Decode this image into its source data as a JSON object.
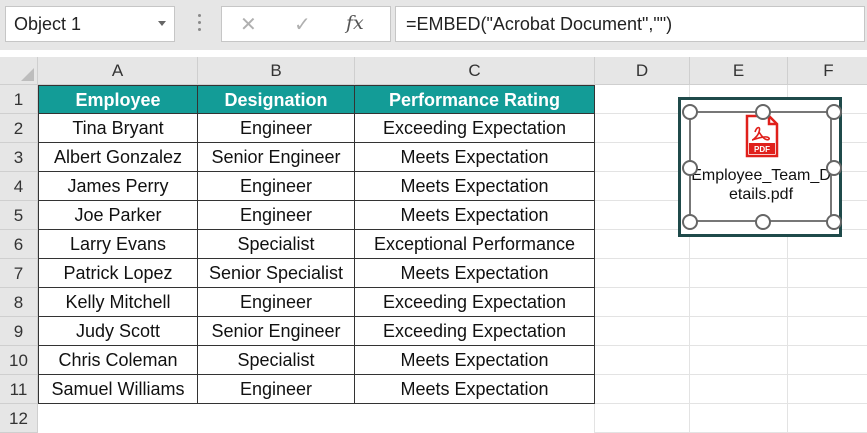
{
  "name_box": {
    "value": "Object 1"
  },
  "formula_bar": {
    "cancel_icon": "cancel-icon",
    "enter_icon": "check-icon",
    "fx_label": "fx",
    "formula": "=EMBED(\"Acrobat Document\",\"\")"
  },
  "columns": [
    "A",
    "B",
    "C",
    "D",
    "E",
    "F"
  ],
  "rows": [
    "1",
    "2",
    "3",
    "4",
    "5",
    "6",
    "7",
    "8",
    "9",
    "10",
    "11",
    "12"
  ],
  "table": {
    "header_color": "#139c97",
    "headers": [
      "Employee",
      "Designation",
      "Performance Rating"
    ],
    "rows": [
      [
        "Tina Bryant",
        "Engineer",
        "Exceeding Expectation"
      ],
      [
        "Albert Gonzalez",
        "Senior Engineer",
        "Meets Expectation"
      ],
      [
        "James Perry",
        "Engineer",
        "Meets Expectation"
      ],
      [
        "Joe Parker",
        "Engineer",
        "Meets Expectation"
      ],
      [
        "Larry Evans",
        "Specialist",
        "Exceptional Performance"
      ],
      [
        "Patrick Lopez",
        "Senior Specialist",
        "Meets Expectation"
      ],
      [
        "Kelly Mitchell",
        "Engineer",
        "Exceeding Expectation"
      ],
      [
        "Judy Scott",
        "Senior Engineer",
        "Exceeding Expectation"
      ],
      [
        "Chris Coleman",
        "Specialist",
        "Meets Expectation"
      ],
      [
        "Samuel Williams",
        "Engineer",
        "Meets Expectation"
      ]
    ]
  },
  "embedded_object": {
    "icon": "pdf-icon",
    "icon_text": "PDF",
    "filename_line1": "Employee_Team_D",
    "filename_line2": "etails.pdf"
  }
}
